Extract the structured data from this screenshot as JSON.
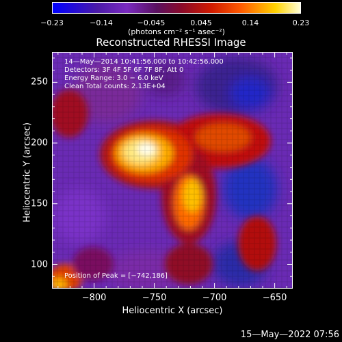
{
  "chart_data": {
    "type": "heatmap",
    "title": "Reconstructed RHESSI Image",
    "xlabel": "Heliocentric X (arcsec)",
    "ylabel": "Heliocentric Y (arcsec)",
    "xlim": [
      -835,
      -635
    ],
    "ylim": [
      80,
      275
    ],
    "xticks": [
      -800,
      -750,
      -700,
      -650
    ],
    "yticks": [
      100,
      150,
      200,
      250
    ],
    "colorbar": {
      "range": [
        -0.23,
        0.23
      ],
      "ticks": [
        -0.23,
        -0.14,
        -0.045,
        0.045,
        0.14,
        0.23
      ],
      "tick_labels": [
        "−0.23",
        "−0.14",
        "−0.045",
        "0.045",
        "0.14",
        "0.23"
      ],
      "unit_label": "(photons cm⁻² s⁻¹ asec⁻²)"
    },
    "peak_position": [
      -742,
      186
    ],
    "colormap": "blue-purple-red-yellow-white"
  },
  "annotations": {
    "line1": "14—May—2014 10:41:56.000 to 10:42:56.000",
    "line2": "Detectors: 3F 4F 5F 6F 7F 8F, Att 0",
    "line3": "Energy Range: 3.0 − 6.0 keV",
    "line4": "Clean     Total counts: 2.13E+04",
    "peak": "Position of Peak = [−742,186]"
  },
  "footer": "15—May—2022 07:56",
  "tick_labels": {
    "x": [
      "−800",
      "−750",
      "−700",
      "−650"
    ],
    "y": [
      "100",
      "150",
      "200",
      "250"
    ]
  }
}
